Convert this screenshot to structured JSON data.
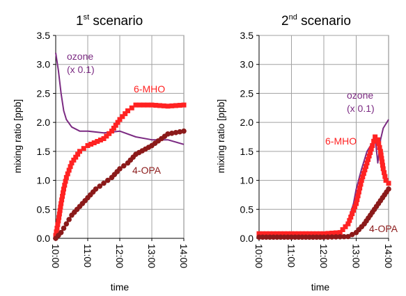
{
  "chart_data": [
    {
      "type": "line",
      "title_sup": "st",
      "title_prefix": "1",
      "title_suffix": " scenario",
      "xlabel": "time",
      "ylabel": "mixing ratio  [ppb]",
      "ylim": [
        0,
        3.5
      ],
      "yticks": [
        "0.0",
        "0.5",
        "1.0",
        "1.5",
        "2.0",
        "2.5",
        "3.0",
        "3.5"
      ],
      "xlim": [
        "10:00",
        "14:00"
      ],
      "xticks": [
        "10:00",
        "11:00",
        "12:00",
        "13:00",
        "14:00"
      ],
      "grid": true,
      "series": [
        {
          "name": "ozone",
          "label_lines": [
            "ozone",
            "(x 0.1)"
          ],
          "color": "#7b2a82",
          "marker": "none",
          "points": [
            [
              "10:00",
              3.2
            ],
            [
              "10:05",
              2.9
            ],
            [
              "10:10",
              2.5
            ],
            [
              "10:15",
              2.2
            ],
            [
              "10:20",
              2.05
            ],
            [
              "10:30",
              1.92
            ],
            [
              "10:45",
              1.85
            ],
            [
              "11:00",
              1.85
            ],
            [
              "11:30",
              1.82
            ],
            [
              "12:00",
              1.85
            ],
            [
              "12:30",
              1.75
            ],
            [
              "13:00",
              1.7
            ],
            [
              "13:30",
              1.7
            ],
            [
              "14:00",
              1.62
            ]
          ]
        },
        {
          "name": "6-MHO",
          "label_lines": [
            "6-MHO"
          ],
          "color": "#ff2222",
          "marker": "square",
          "points": [
            [
              "10:00",
              0.05
            ],
            [
              "10:05",
              0.3
            ],
            [
              "10:10",
              0.6
            ],
            [
              "10:15",
              0.85
            ],
            [
              "10:20",
              1.05
            ],
            [
              "10:30",
              1.3
            ],
            [
              "10:45",
              1.5
            ],
            [
              "11:00",
              1.6
            ],
            [
              "11:30",
              1.72
            ],
            [
              "11:45",
              1.85
            ],
            [
              "12:00",
              2.05
            ],
            [
              "12:15",
              2.2
            ],
            [
              "12:30",
              2.3
            ],
            [
              "13:00",
              2.3
            ],
            [
              "13:30",
              2.28
            ],
            [
              "14:00",
              2.3
            ]
          ]
        },
        {
          "name": "4-OPA",
          "label_lines": [
            "4-OPA"
          ],
          "color": "#8b1a1a",
          "marker": "circle",
          "points": [
            [
              "10:00",
              0.0
            ],
            [
              "10:10",
              0.1
            ],
            [
              "10:20",
              0.25
            ],
            [
              "10:30",
              0.4
            ],
            [
              "10:45",
              0.55
            ],
            [
              "11:00",
              0.7
            ],
            [
              "11:15",
              0.85
            ],
            [
              "11:30",
              0.95
            ],
            [
              "11:45",
              1.05
            ],
            [
              "12:00",
              1.2
            ],
            [
              "12:15",
              1.3
            ],
            [
              "12:30",
              1.45
            ],
            [
              "13:00",
              1.6
            ],
            [
              "13:30",
              1.8
            ],
            [
              "14:00",
              1.85
            ]
          ]
        }
      ]
    },
    {
      "type": "line",
      "title_sup": "nd",
      "title_prefix": "2",
      "title_suffix": " scenario",
      "xlabel": "time",
      "ylabel": "mixing ratio [ppb]",
      "ylim": [
        0,
        3.5
      ],
      "yticks": [
        "0.0",
        "0.5",
        "1.0",
        "1.5",
        "2.0",
        "2.5",
        "3.0",
        "3.5"
      ],
      "xlim": [
        "10:00",
        "14:00"
      ],
      "xticks": [
        "10:00",
        "11:00",
        "12:00",
        "13:00",
        "14:00"
      ],
      "grid": true,
      "series": [
        {
          "name": "ozone",
          "label_lines": [
            "ozone",
            "(x 0.1)"
          ],
          "color": "#7b2a82",
          "marker": "none",
          "points": [
            [
              "10:00",
              0.05
            ],
            [
              "11:00",
              0.05
            ],
            [
              "12:00",
              0.05
            ],
            [
              "12:30",
              0.08
            ],
            [
              "12:45",
              0.3
            ],
            [
              "12:55",
              0.6
            ],
            [
              "13:00",
              0.85
            ],
            [
              "13:10",
              1.2
            ],
            [
              "13:20",
              1.5
            ],
            [
              "13:30",
              1.65
            ],
            [
              "13:35",
              1.75
            ],
            [
              "13:40",
              1.3
            ],
            [
              "13:45",
              1.7
            ],
            [
              "13:50",
              1.9
            ],
            [
              "14:00",
              2.05
            ]
          ]
        },
        {
          "name": "6-MHO",
          "label_lines": [
            "6-MHO"
          ],
          "color": "#ff2222",
          "marker": "square",
          "points": [
            [
              "10:00",
              0.08
            ],
            [
              "11:00",
              0.08
            ],
            [
              "12:00",
              0.08
            ],
            [
              "12:30",
              0.1
            ],
            [
              "12:45",
              0.25
            ],
            [
              "13:00",
              0.6
            ],
            [
              "13:10",
              1.0
            ],
            [
              "13:20",
              1.3
            ],
            [
              "13:30",
              1.6
            ],
            [
              "13:35",
              1.75
            ],
            [
              "13:40",
              1.7
            ],
            [
              "13:45",
              1.5
            ],
            [
              "13:50",
              1.2
            ],
            [
              "13:55",
              1.0
            ],
            [
              "14:00",
              0.95
            ]
          ]
        },
        {
          "name": "4-OPA",
          "label_lines": [
            "4-OPA"
          ],
          "color": "#8b1a1a",
          "marker": "circle",
          "points": [
            [
              "10:00",
              0.02
            ],
            [
              "11:00",
              0.02
            ],
            [
              "12:00",
              0.02
            ],
            [
              "12:45",
              0.03
            ],
            [
              "13:00",
              0.1
            ],
            [
              "13:15",
              0.25
            ],
            [
              "13:30",
              0.45
            ],
            [
              "13:45",
              0.65
            ],
            [
              "14:00",
              0.85
            ]
          ]
        }
      ]
    }
  ]
}
